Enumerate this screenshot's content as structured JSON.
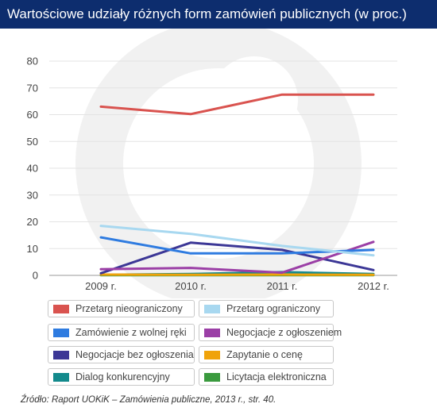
{
  "title": "Wartościowe udziały różnych form zamówień publicznych (w proc.)",
  "source": "Źródło: Raport UOKiK – Zamówienia publiczne, 2013 r., str. 40.",
  "chart_data": {
    "type": "line",
    "categories": [
      "2009 r.",
      "2010 r.",
      "2011 r.",
      "2012 r."
    ],
    "yticks": [
      0,
      10,
      20,
      30,
      40,
      50,
      60,
      70,
      80
    ],
    "ylim": [
      0,
      80
    ],
    "grid": true,
    "legend_position": "bottom",
    "series": [
      {
        "name": "Przetarg nieograniczony",
        "color": "#d9534f",
        "values": [
          63,
          60.2,
          67.5,
          67.5
        ]
      },
      {
        "name": "Przetarg ograniczony",
        "color": "#a8d8f0",
        "values": [
          18.5,
          15.5,
          11,
          7.5
        ]
      },
      {
        "name": "Zamówienie z wolnej ręki",
        "color": "#2e7be0",
        "values": [
          14.2,
          8.2,
          8.2,
          9.5
        ]
      },
      {
        "name": "Negocjacje z ogłoszeniem",
        "color": "#9b3fa6",
        "values": [
          2.3,
          2.8,
          1,
          12.5
        ]
      },
      {
        "name": "Negocjacje bez ogłoszenia",
        "color": "#3c3796",
        "values": [
          0.8,
          12.2,
          9.5,
          2
        ]
      },
      {
        "name": "Zapytanie o cenę",
        "color": "#f0a30a",
        "values": [
          0.3,
          0.2,
          0.3,
          0.2
        ]
      },
      {
        "name": "Dialog konkurencyjny",
        "color": "#138a8c",
        "values": [
          0.2,
          0.5,
          1.2,
          0.5
        ]
      },
      {
        "name": "Licytacja elektroniczna",
        "color": "#3a9a3e",
        "values": [
          0.1,
          0.1,
          0.1,
          0.1
        ]
      }
    ]
  }
}
